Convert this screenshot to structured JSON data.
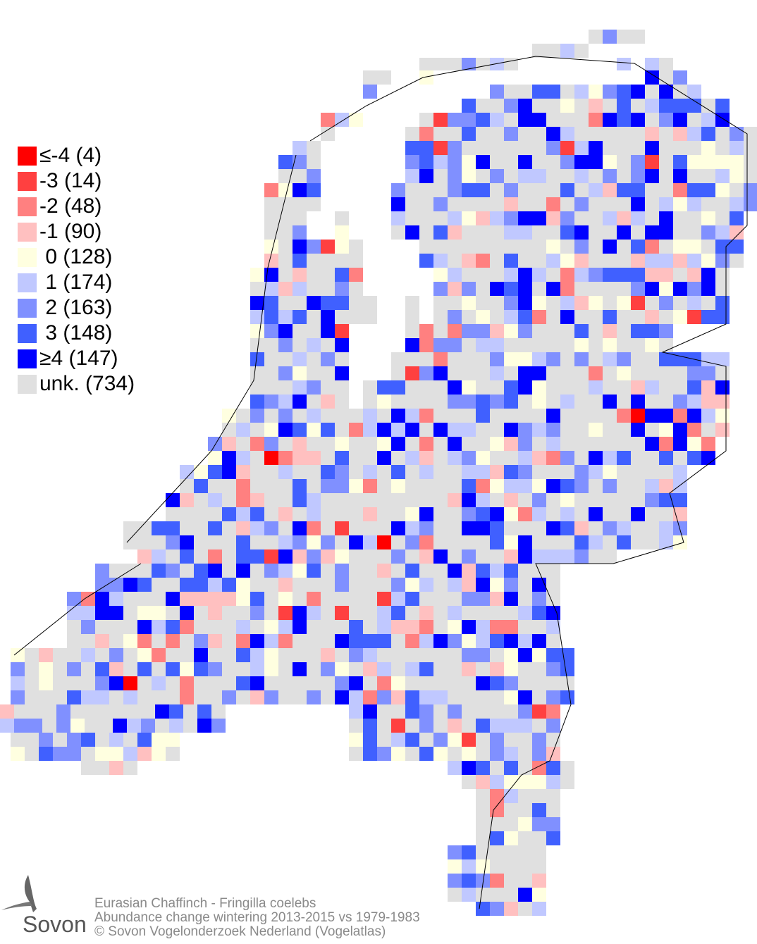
{
  "legend": [
    {
      "label": "≤-4 (4)",
      "color": "#ff0000"
    },
    {
      "label": "-3 (14)",
      "color": "#ff4040"
    },
    {
      "label": "-2 (48)",
      "color": "#ff8080"
    },
    {
      "label": "-1 (90)",
      "color": "#ffc0c0"
    },
    {
      "label": " 0 (128)",
      "color": "#ffffe0"
    },
    {
      "label": " 1 (174)",
      "color": "#c0c8ff"
    },
    {
      "label": " 2 (163)",
      "color": "#8090ff"
    },
    {
      "label": " 3 (148)",
      "color": "#4060ff"
    },
    {
      "label": "≥4 (147)",
      "color": "#0000ff"
    },
    {
      "label": "unk. (734)",
      "color": "#e0e0e0"
    }
  ],
  "footer": {
    "species": "Eurasian Chaffinch - Fringilla coelebs",
    "subtitle": "Abundance change wintering  2013-2015 vs 1979-1983",
    "copyright": "© Sovon Vogelonderzoek Nederland (Vogelatlas)"
  },
  "logo": {
    "text": "Sovon"
  }
}
